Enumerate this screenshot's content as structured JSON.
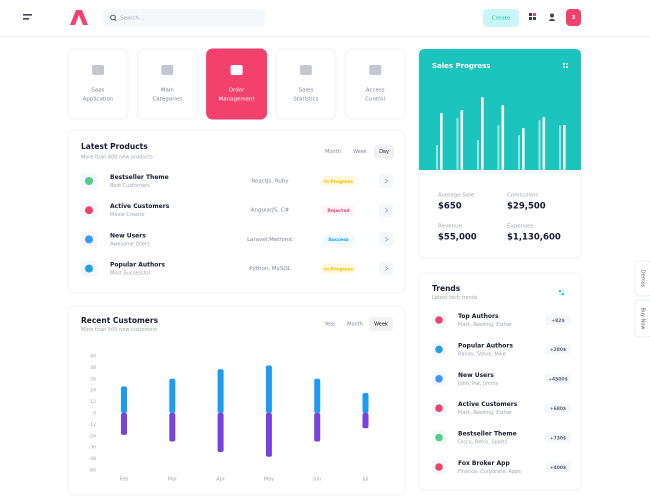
{
  "header": {
    "search_placeholder": "Search...",
    "create_button": "Create",
    "notification_count": "3"
  },
  "tiles": [
    {
      "label": [
        "Saas",
        "Application"
      ]
    },
    {
      "label": [
        "Main",
        "Categories"
      ]
    },
    {
      "label": [
        "Order",
        "Management"
      ],
      "active": true
    },
    {
      "label": [
        "Sales",
        "Statistics"
      ]
    },
    {
      "label": [
        "Access",
        "Control"
      ]
    }
  ],
  "latest_products": {
    "title": "Latest Products",
    "subtitle": "More than 400 new products",
    "tabs": [
      "Month",
      "Week",
      "Day"
    ],
    "active_tab": 2,
    "rows": [
      {
        "name": "Bestseller Theme",
        "desc": "Best Customers",
        "tech": "ReactJs, Ruby",
        "status": "In Progress",
        "status_type": "warning",
        "icon_color": "#50cd89"
      },
      {
        "name": "Active Customers",
        "desc": "Movie Creator",
        "tech": "AngularJS, C#",
        "status": "Rejected",
        "status_type": "danger",
        "icon_color": "#f1416c"
      },
      {
        "name": "New Users",
        "desc": "Awesome Users",
        "tech": "Laravel,Metronic",
        "status": "Success",
        "status_type": "primary",
        "icon_color": "#3e97ff"
      },
      {
        "name": "Popular Authors",
        "desc": "Most Successful",
        "tech": "Python, MySQL",
        "status": "In Progress",
        "status_type": "warning",
        "icon_color": "#24a1de"
      }
    ]
  },
  "recent_customers": {
    "title": "Recent Customers",
    "subtitle": "More than 500 new customers",
    "tabs": [
      "Year",
      "Month",
      "Week"
    ],
    "active_tab": 2,
    "chart_data": {
      "type": "bar",
      "categories": [
        "Feb",
        "Mar",
        "Apr",
        "May",
        "Jun",
        "Jul"
      ],
      "series": [
        {
          "color": "#1b9cf2",
          "values": [
            28,
            36,
            46,
            50,
            36,
            21
          ]
        },
        {
          "color": "#7a3fe0",
          "values": [
            -23,
            -30,
            -41,
            -46,
            -30,
            -16
          ]
        }
      ],
      "ylim": [
        -60,
        60
      ],
      "yticks": [
        60,
        48,
        36,
        24,
        12,
        0,
        -12,
        -24,
        -36,
        -48,
        -60
      ]
    }
  },
  "sales_progress": {
    "title": "Sales Progress",
    "bars": [
      [
        25,
        57
      ],
      [
        52,
        60
      ],
      [
        30,
        73
      ],
      [
        45,
        65
      ],
      [
        35,
        42
      ],
      [
        50,
        53
      ],
      [
        45,
        45
      ]
    ],
    "stats": [
      {
        "label": "Average Sale",
        "value": "$650"
      },
      {
        "label": "Comissions",
        "value": "$29,500"
      },
      {
        "label": "Revenue",
        "value": "$55,000"
      },
      {
        "label": "Expenses",
        "value": "$1,130,600"
      }
    ]
  },
  "trends": {
    "title": "Trends",
    "subtitle": "Latest tech trends",
    "items": [
      {
        "name": "Top Authors",
        "desc": "Mark, Rowling, Esther",
        "value": "+82$",
        "icon_color": "#f1416c"
      },
      {
        "name": "Popular Authors",
        "desc": "Randy, Steve, Mike",
        "value": "+280$",
        "icon_color": "#24a1de"
      },
      {
        "name": "New Users",
        "desc": "John, Pat, Jimmy",
        "value": "+4500$",
        "icon_color": "#3e97ff"
      },
      {
        "name": "Active Customers",
        "desc": "Mark, Rowling, Esther",
        "value": "+680$",
        "icon_color": "#f1416c"
      },
      {
        "name": "Bestseller Theme",
        "desc": "Disco, Retro, Sports",
        "value": "+730$",
        "icon_color": "#50cd89"
      },
      {
        "name": "Fox Broker App",
        "desc": "Finance, Corporate, Apps",
        "value": "+400$",
        "icon_color": "#f1416c"
      }
    ]
  },
  "side_tabs": [
    "Demos",
    "Buy Now"
  ]
}
